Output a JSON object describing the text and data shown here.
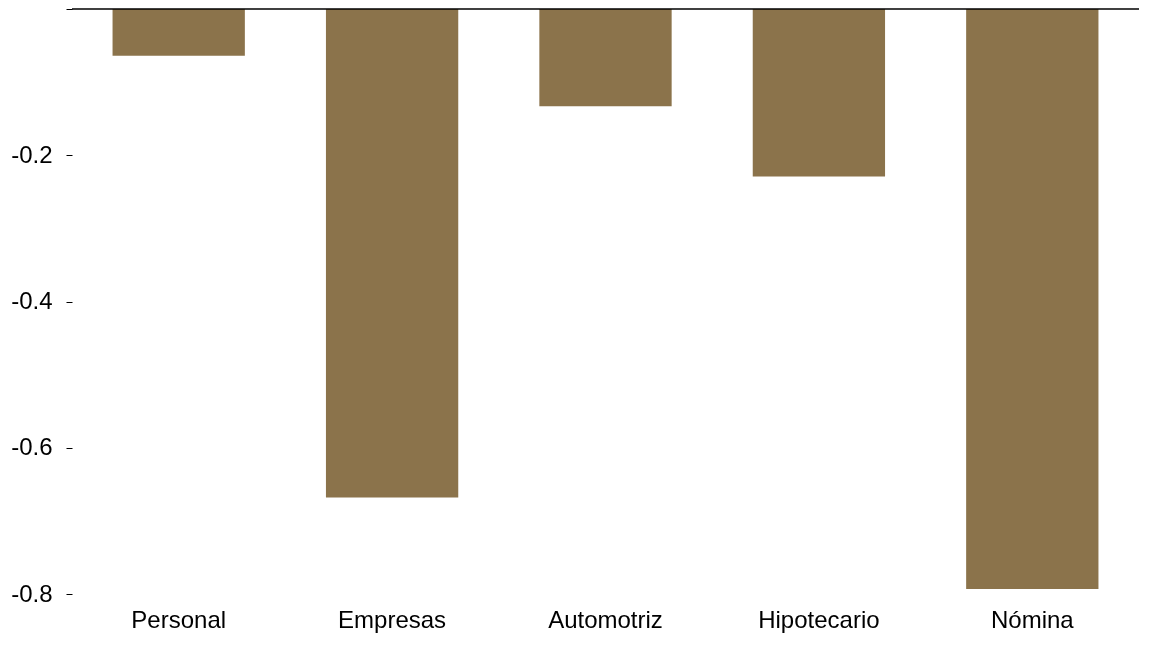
{
  "chart_data": {
    "type": "bar",
    "categories": [
      "Personal",
      "Empresas",
      "Automotriz",
      "Hipotecario",
      "Nómina"
    ],
    "values": [
      -0.064,
      -0.668,
      -0.133,
      -0.229,
      -0.793
    ],
    "color": "#8b734b",
    "ylim": [
      -0.8,
      0
    ],
    "yticks": [
      {
        "value": 0,
        "label": null
      },
      -0.2,
      -0.4,
      -0.6,
      -0.8
    ],
    "grid": false
  }
}
